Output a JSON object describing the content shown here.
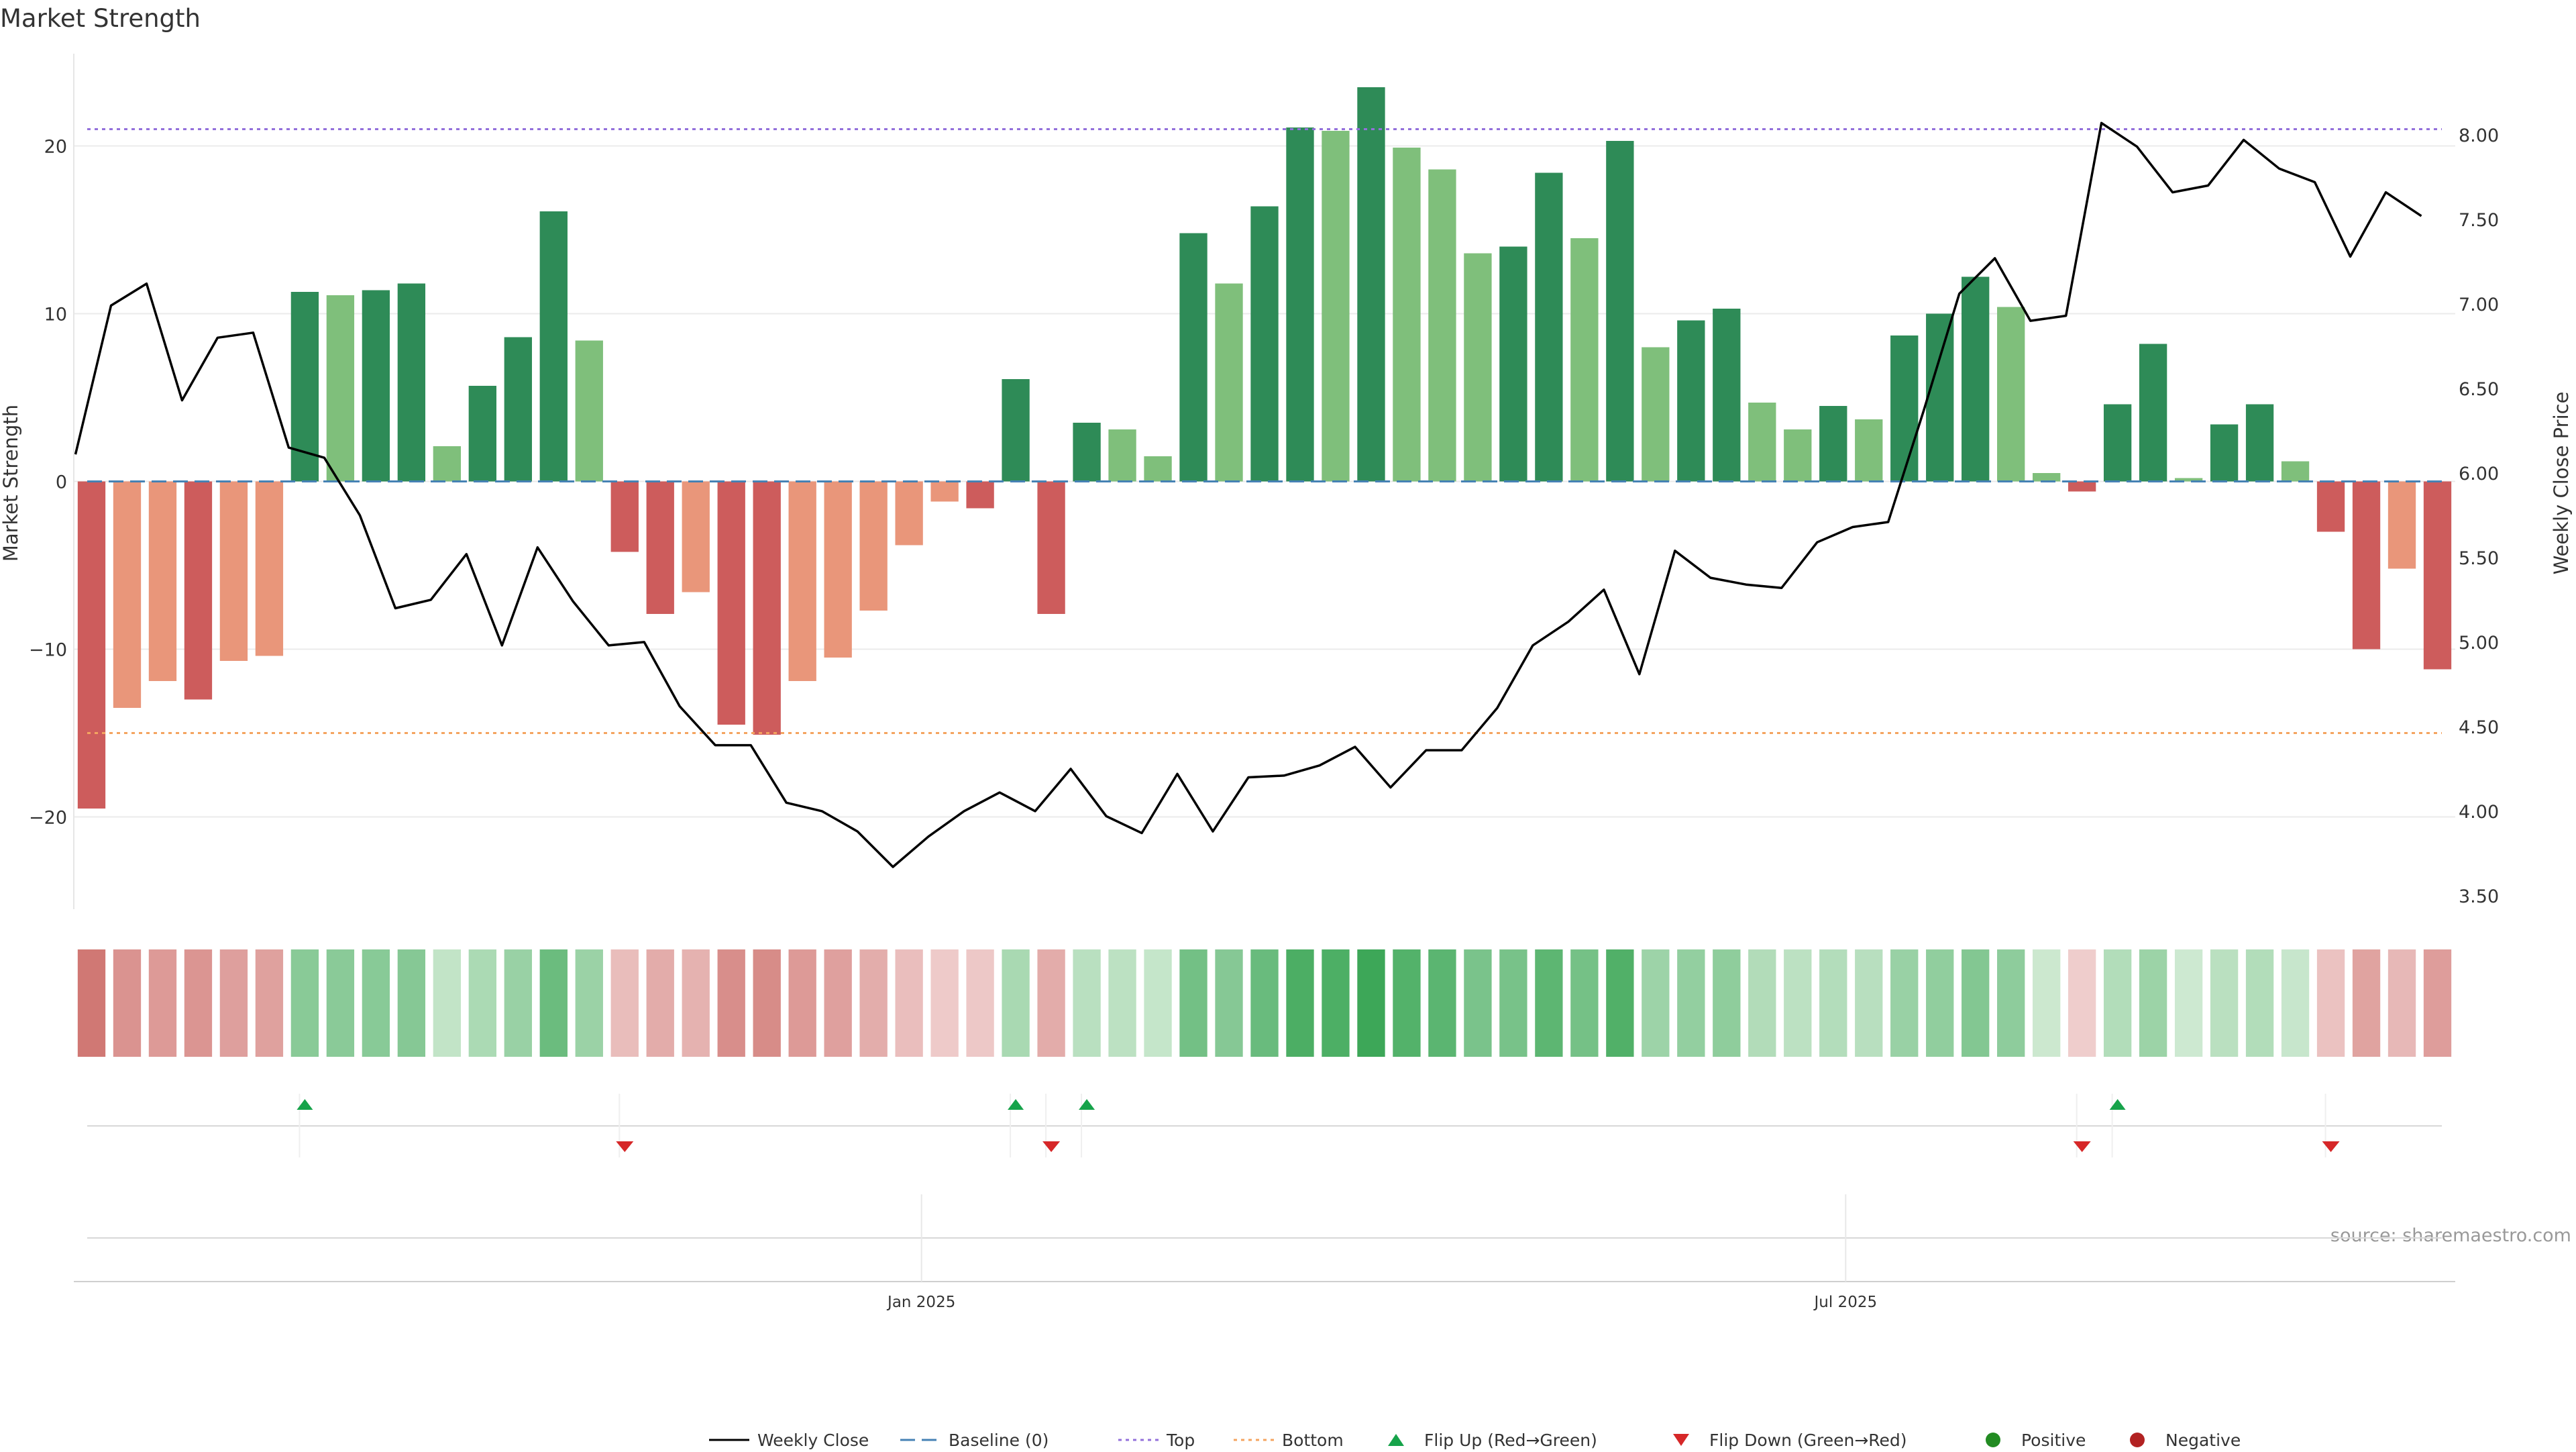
{
  "chart_data": {
    "type": "bar",
    "title": "Market Strength",
    "ylabel": "Market Strength",
    "y2label": "Weekly Close Price",
    "ylim": [
      -25.5,
      25.5
    ],
    "y2lim": [
      3.42,
      8.48
    ],
    "yticks": [
      -20,
      -10,
      0,
      10,
      20
    ],
    "y2ticks": [
      3.5,
      4.0,
      4.5,
      5.0,
      5.5,
      6.0,
      6.5,
      7.0,
      7.5,
      8.0
    ],
    "y2tick_labels": [
      "3.50",
      "4.00",
      "4.50",
      "5.00",
      "5.50",
      "6.00",
      "6.50",
      "7.00",
      "7.50",
      "8.00"
    ],
    "xtick_labels": [
      {
        "label": "Jan 2025",
        "index": 23.35
      },
      {
        "label": "Jul 2025",
        "index": 49.35
      }
    ],
    "top_line": 21,
    "bottom_line": -15,
    "baseline": 0,
    "strength": [
      -19.5,
      -13.5,
      -11.9,
      -13,
      -10.7,
      -10.4,
      11.3,
      11.1,
      11.4,
      11.8,
      2.1,
      5.7,
      8.6,
      16.1,
      8.4,
      -4.2,
      -7.9,
      -6.6,
      -14.5,
      -15.1,
      -11.9,
      -10.5,
      -7.7,
      -3.8,
      -1.2,
      -1.6,
      6.1,
      -7.9,
      3.5,
      3.1,
      1.5,
      14.8,
      11.8,
      16.4,
      21.1,
      20.9,
      23.5,
      19.9,
      18.6,
      13.6,
      14,
      18.4,
      14.5,
      20.3,
      8,
      9.6,
      10.3,
      4.7,
      3.1,
      4.5,
      3.7,
      8.7,
      10,
      12.2,
      10.4,
      0.5,
      -0.6,
      4.6,
      8.2,
      0.2,
      3.4,
      4.6,
      1.2,
      -3,
      -10,
      -5.2,
      -11.2
    ],
    "weekly_close": [
      6.11,
      6.99,
      7.12,
      6.43,
      6.8,
      6.83,
      6.15,
      6.09,
      5.75,
      5.2,
      5.25,
      5.52,
      4.98,
      5.56,
      5.24,
      4.98,
      5.0,
      4.62,
      4.39,
      4.39,
      4.05,
      4.0,
      3.88,
      3.67,
      3.85,
      4.0,
      4.11,
      4.0,
      4.25,
      3.97,
      3.87,
      4.22,
      3.88,
      4.2,
      4.21,
      4.27,
      4.38,
      4.14,
      4.36,
      4.36,
      4.61,
      4.98,
      5.12,
      5.31,
      4.81,
      5.54,
      5.38,
      5.34,
      5.32,
      5.59,
      5.68,
      5.71,
      6.37,
      7.06,
      7.27,
      6.9,
      6.93,
      8.07,
      7.93,
      7.66,
      7.7,
      7.97,
      7.8,
      7.72,
      7.28,
      7.66,
      7.52
    ],
    "flip_up_indices": [
      6,
      26,
      28,
      57
    ],
    "flip_down_indices": [
      15,
      27,
      56,
      63
    ],
    "colors": {
      "positive_dark": "#2e8b57",
      "positive_light": "#7fbf7b",
      "negative_dark": "#cd5c5c",
      "negative_light": "#e9967a",
      "close_line": "#000000",
      "baseline": "#4682b4",
      "top": "#9370db",
      "bottom": "#f4a460",
      "flip_up": "#16a34a",
      "flip_down": "#d62728",
      "positive_dot": "#228b22",
      "negative_dot": "#b22222"
    },
    "legend": [
      "Weekly Close",
      "Baseline (0)",
      "Top",
      "Bottom",
      "Flip Up (Red→Green)",
      "Flip Down (Green→Red)",
      "Positive",
      "Negative"
    ],
    "legend_position": "bottom-center",
    "source_note": "source: sharemaestro.com"
  }
}
